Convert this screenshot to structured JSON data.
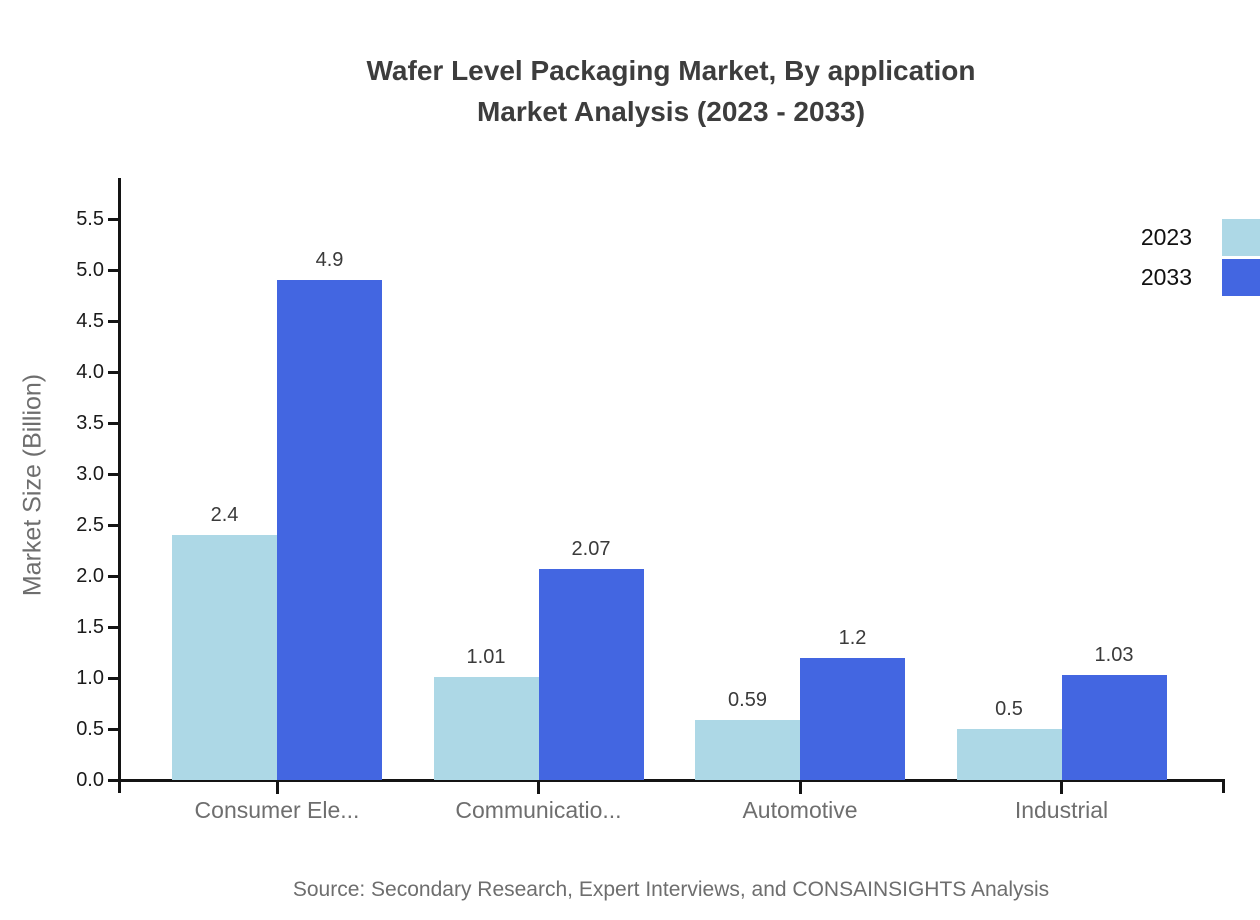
{
  "chart_data": {
    "type": "bar",
    "title_line1": "Wafer Level Packaging Market, By application",
    "title_line2": "Market Analysis (2023 - 2033)",
    "ylabel": "Market Size (Billion)",
    "xlabel": "",
    "categories": [
      "Consumer Ele...",
      "Communicatio...",
      "Automotive",
      "Industrial"
    ],
    "series": [
      {
        "name": "2023",
        "color": "#ADD8E6",
        "values": [
          2.4,
          1.01,
          0.59,
          0.5
        ]
      },
      {
        "name": "2033",
        "color": "#4366E1",
        "values": [
          4.9,
          2.07,
          1.2,
          1.03
        ]
      }
    ],
    "ylim": [
      0.0,
      5.9
    ],
    "y_tick_min": 0.0,
    "y_tick_max": 5.5,
    "y_tick_step": 0.5,
    "grid": false,
    "legend_position": "top-right"
  },
  "source": "Source: Secondary Research, Expert Interviews, and CONSAINSIGHTS Analysis"
}
